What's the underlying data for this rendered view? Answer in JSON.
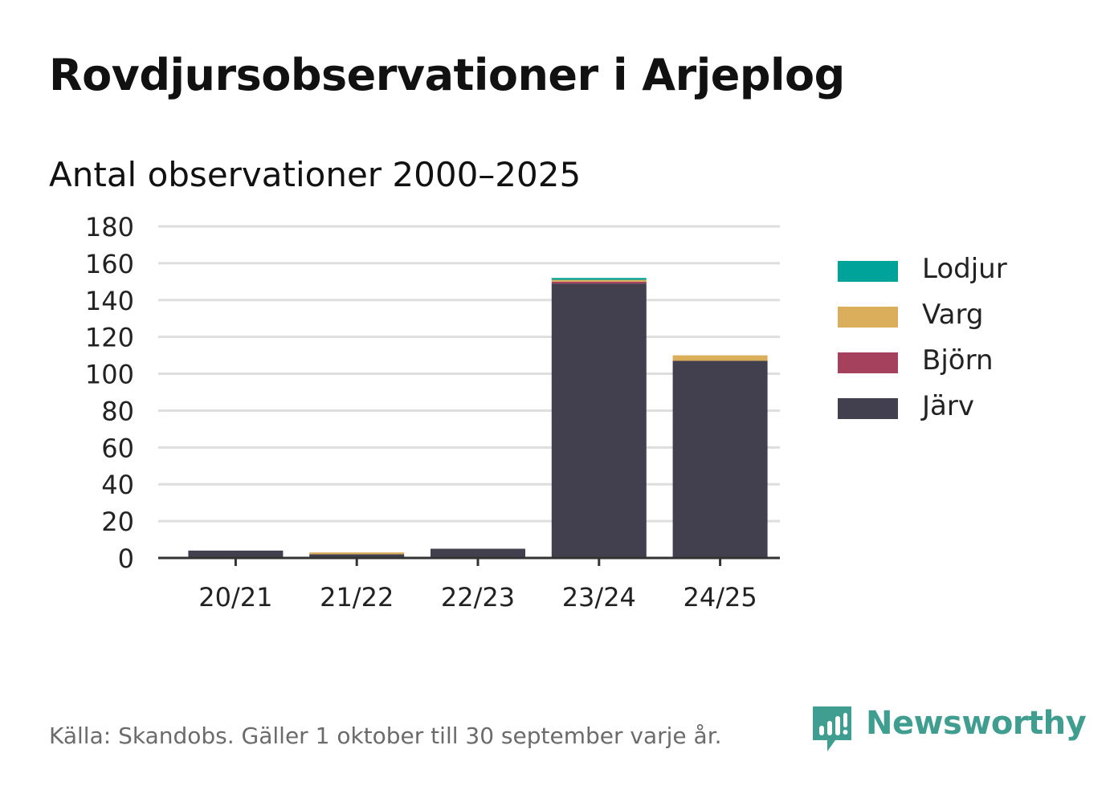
{
  "title": "Rovdjursobservationer i Arjeplog",
  "subtitle": "Antal observationer 2000–2025",
  "source": "Källa: Skandobs. Gäller 1 oktober till 30 september varje år.",
  "brand": {
    "name": "Newsworthy",
    "icon": "newsworthy-logo-icon",
    "color": "#3f9e8f"
  },
  "legend": [
    {
      "name": "Lodjur",
      "color": "#00a39a"
    },
    {
      "name": "Varg",
      "color": "#dbae5c"
    },
    {
      "name": "Björn",
      "color": "#a5415c"
    },
    {
      "name": "Järv",
      "color": "#42404f"
    }
  ],
  "chart_data": {
    "type": "bar",
    "stacked": true,
    "categories": [
      "20/21",
      "21/22",
      "22/23",
      "23/24",
      "24/25"
    ],
    "series": [
      {
        "name": "Järv",
        "color": "#42404f",
        "values": [
          4,
          2,
          5,
          149,
          107
        ]
      },
      {
        "name": "Björn",
        "color": "#a5415c",
        "values": [
          0,
          0,
          0,
          1,
          0
        ]
      },
      {
        "name": "Varg",
        "color": "#dbae5c",
        "values": [
          0,
          1,
          0,
          1,
          3
        ]
      },
      {
        "name": "Lodjur",
        "color": "#00a39a",
        "values": [
          0,
          0,
          0,
          1,
          0
        ]
      }
    ],
    "ylim": [
      0,
      180
    ],
    "yticks": [
      0,
      20,
      40,
      60,
      80,
      100,
      120,
      140,
      160,
      180
    ],
    "grid": true,
    "legend_position": "right",
    "xlabel": "",
    "ylabel": ""
  }
}
